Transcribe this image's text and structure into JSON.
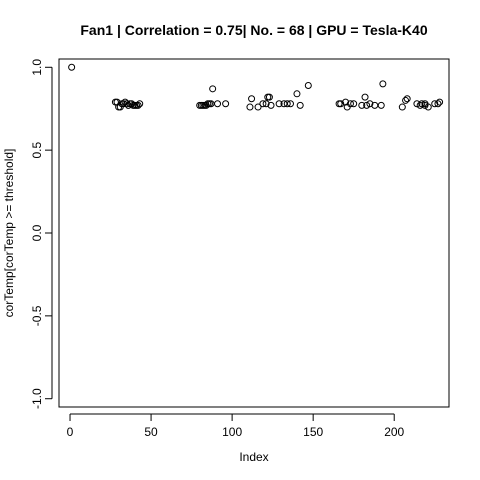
{
  "chart_data": {
    "type": "scatter",
    "title": "Fan1 | Correlation = 0.75| No. = 68 | GPU = Tesla-K40",
    "xlabel": "Index",
    "ylabel": "corTemp[corTemp >= threshold]",
    "xlim": [
      -6.8,
      233.8
    ],
    "ylim": [
      -1.05,
      1.05
    ],
    "xticks": [
      0,
      50,
      100,
      150,
      200
    ],
    "xtick_labels": [
      "0",
      "50",
      "100",
      "150",
      "200"
    ],
    "yticks": [
      -1.0,
      -0.5,
      0.0,
      0.5,
      1.0
    ],
    "ytick_labels": [
      "-1.0",
      "-0.5",
      "0.0",
      "0.5",
      "1.0"
    ],
    "grid": false,
    "x": [
      1,
      28,
      29,
      30,
      31,
      32,
      33,
      34,
      35,
      36,
      37,
      38,
      39,
      40,
      41,
      42,
      43,
      80,
      81,
      82,
      83,
      84,
      85,
      86,
      87,
      88,
      91,
      96,
      111,
      112,
      116,
      119,
      121,
      122,
      123,
      124,
      129,
      132,
      134,
      136,
      140,
      142,
      147,
      166,
      167,
      170,
      171,
      173,
      175,
      180,
      182,
      183,
      185,
      188,
      192,
      193,
      205,
      207,
      208,
      214,
      216,
      217,
      219,
      221,
      225,
      227,
      228,
      219
    ],
    "y": [
      1.0,
      0.79,
      0.79,
      0.76,
      0.76,
      0.78,
      0.78,
      0.79,
      0.78,
      0.77,
      0.78,
      0.78,
      0.77,
      0.77,
      0.77,
      0.77,
      0.78,
      0.77,
      0.77,
      0.77,
      0.77,
      0.77,
      0.78,
      0.78,
      0.78,
      0.87,
      0.78,
      0.78,
      0.76,
      0.81,
      0.76,
      0.78,
      0.78,
      0.82,
      0.82,
      0.77,
      0.78,
      0.78,
      0.78,
      0.78,
      0.84,
      0.77,
      0.89,
      0.78,
      0.78,
      0.79,
      0.76,
      0.78,
      0.78,
      0.77,
      0.82,
      0.77,
      0.78,
      0.77,
      0.77,
      0.9,
      0.76,
      0.8,
      0.81,
      0.78,
      0.77,
      0.78,
      0.78,
      0.76,
      0.78,
      0.78,
      0.79,
      0.77
    ]
  }
}
